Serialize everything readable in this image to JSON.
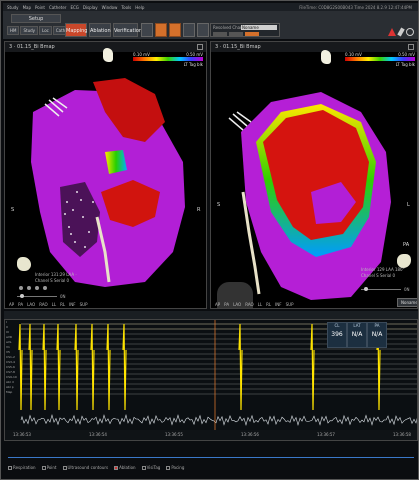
{
  "menu": {
    "items": [
      "Study",
      "Map",
      "Point",
      "Catheter",
      "ECG",
      "Display",
      "Window",
      "Tools",
      "Help"
    ],
    "status": "FileTime: C0D8G2S00B043 Time 2024 8.2.9 12:47:44PM"
  },
  "toolbar": {
    "setup_label": "Setup",
    "sub_buttons": [
      "HM",
      "Study",
      "Loc",
      "Cath",
      "Map"
    ],
    "mapping_label": "Mapping",
    "ablation_label": "Ablation",
    "verification_label": "Verification",
    "panel_title": "Resolved Channel",
    "panel_value": "Noname",
    "accent_color": "#c9472a",
    "orange_color": "#d4702b"
  },
  "viewport_left": {
    "title": "3 · 01.15_Bi Bmap",
    "scale_min": "0.10 mV",
    "scale_max": "0.50 mV",
    "scale_caption": "LT Tag blk",
    "axis_s": "S",
    "axis_r": "R",
    "info_lines": [
      "Interior  131:29  LAA  ·",
      "Chanel  S  Serial  0"
    ],
    "slider_value": "0N",
    "view_buttons": [
      "AP",
      "PA",
      "LAO",
      "RAO",
      "LL",
      "RL",
      "INF",
      "SUP"
    ]
  },
  "viewport_right": {
    "title": "3 · 01.15_Bi Bmap",
    "scale_min": "0.10 mV",
    "scale_max": "0.50 mV",
    "scale_caption": "LT Tag blk",
    "axis_s": "S",
    "axis_l": "L",
    "axis_pa": "PA",
    "info_lines": [
      "Interior  129  LAA  180°",
      "Chanel  S  Serial  0"
    ],
    "slider_value": "0N",
    "view_buttons": [
      "AP",
      "PA",
      "LAO",
      "RAO",
      "LL",
      "RL",
      "INF",
      "SUP"
    ],
    "noname_label": "Noname"
  },
  "ecg": {
    "channel_labels": [
      "I",
      "II",
      "III",
      "aVR",
      "aVL",
      "V1",
      "V5",
      "CS1-2",
      "CS3-4",
      "CS5-6",
      "CS7-8",
      "CS9-10",
      "Abl d",
      "Abl p",
      "Map"
    ],
    "readout_headers": [
      "CL",
      "LAT",
      "PA"
    ],
    "readout_values": [
      "396",
      "N/A",
      "N/A"
    ],
    "time_ticks": [
      "13:36:53",
      "13:36:54",
      "13:36:55",
      "13:36:56",
      "13:36:57",
      "13:36:58"
    ]
  },
  "legend": {
    "items": [
      "Respiration",
      "Point",
      "Ultrasound contours",
      "Ablation",
      "VisiTag",
      "Pacing"
    ]
  }
}
